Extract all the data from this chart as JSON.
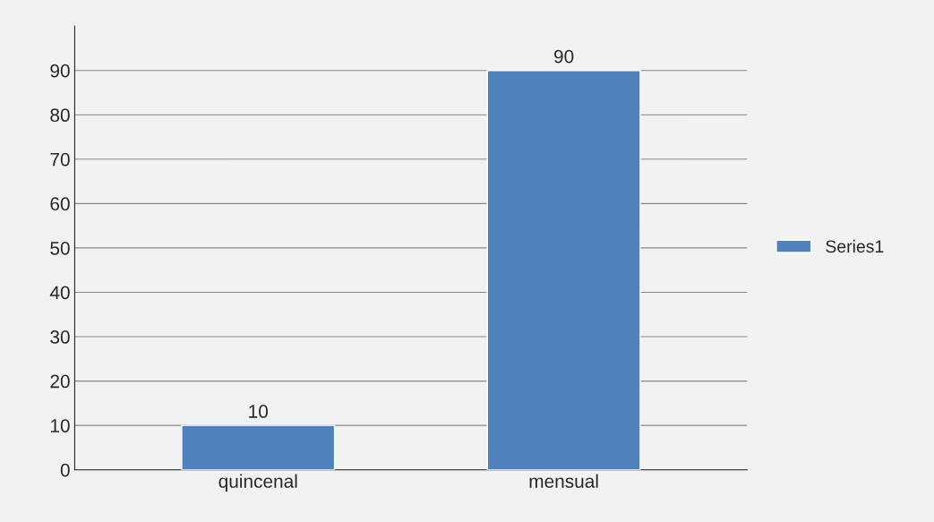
{
  "chart_data": {
    "type": "bar",
    "categories": [
      "quincenal",
      "mensual"
    ],
    "series": [
      {
        "name": "Series1",
        "color": "#4f81bd",
        "values": [
          10,
          90
        ]
      }
    ],
    "ylim": [
      0,
      100
    ],
    "yticks": [
      0,
      10,
      20,
      30,
      40,
      50,
      60,
      70,
      80,
      90
    ],
    "grid": "y",
    "legend": "right",
    "data_labels": true
  }
}
